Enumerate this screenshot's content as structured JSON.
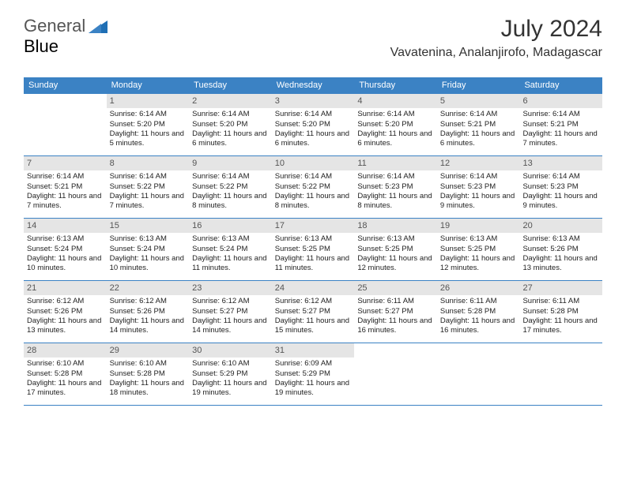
{
  "logo": {
    "word1": "General",
    "word2": "Blue"
  },
  "title": "July 2024",
  "location": "Vavatenina, Analanjirofo, Madagascar",
  "colors": {
    "accent": "#3b82c4",
    "daynum_bg": "#e5e5e5",
    "text": "#222222",
    "title_text": "#333333",
    "background": "#ffffff"
  },
  "dow": [
    "Sunday",
    "Monday",
    "Tuesday",
    "Wednesday",
    "Thursday",
    "Friday",
    "Saturday"
  ],
  "weeks": [
    [
      {
        "n": "",
        "sr": "",
        "ss": "",
        "dl": ""
      },
      {
        "n": "1",
        "sr": "6:14 AM",
        "ss": "5:20 PM",
        "dl": "11 hours and 5 minutes."
      },
      {
        "n": "2",
        "sr": "6:14 AM",
        "ss": "5:20 PM",
        "dl": "11 hours and 6 minutes."
      },
      {
        "n": "3",
        "sr": "6:14 AM",
        "ss": "5:20 PM",
        "dl": "11 hours and 6 minutes."
      },
      {
        "n": "4",
        "sr": "6:14 AM",
        "ss": "5:20 PM",
        "dl": "11 hours and 6 minutes."
      },
      {
        "n": "5",
        "sr": "6:14 AM",
        "ss": "5:21 PM",
        "dl": "11 hours and 6 minutes."
      },
      {
        "n": "6",
        "sr": "6:14 AM",
        "ss": "5:21 PM",
        "dl": "11 hours and 7 minutes."
      }
    ],
    [
      {
        "n": "7",
        "sr": "6:14 AM",
        "ss": "5:21 PM",
        "dl": "11 hours and 7 minutes."
      },
      {
        "n": "8",
        "sr": "6:14 AM",
        "ss": "5:22 PM",
        "dl": "11 hours and 7 minutes."
      },
      {
        "n": "9",
        "sr": "6:14 AM",
        "ss": "5:22 PM",
        "dl": "11 hours and 8 minutes."
      },
      {
        "n": "10",
        "sr": "6:14 AM",
        "ss": "5:22 PM",
        "dl": "11 hours and 8 minutes."
      },
      {
        "n": "11",
        "sr": "6:14 AM",
        "ss": "5:23 PM",
        "dl": "11 hours and 8 minutes."
      },
      {
        "n": "12",
        "sr": "6:14 AM",
        "ss": "5:23 PM",
        "dl": "11 hours and 9 minutes."
      },
      {
        "n": "13",
        "sr": "6:14 AM",
        "ss": "5:23 PM",
        "dl": "11 hours and 9 minutes."
      }
    ],
    [
      {
        "n": "14",
        "sr": "6:13 AM",
        "ss": "5:24 PM",
        "dl": "11 hours and 10 minutes."
      },
      {
        "n": "15",
        "sr": "6:13 AM",
        "ss": "5:24 PM",
        "dl": "11 hours and 10 minutes."
      },
      {
        "n": "16",
        "sr": "6:13 AM",
        "ss": "5:24 PM",
        "dl": "11 hours and 11 minutes."
      },
      {
        "n": "17",
        "sr": "6:13 AM",
        "ss": "5:25 PM",
        "dl": "11 hours and 11 minutes."
      },
      {
        "n": "18",
        "sr": "6:13 AM",
        "ss": "5:25 PM",
        "dl": "11 hours and 12 minutes."
      },
      {
        "n": "19",
        "sr": "6:13 AM",
        "ss": "5:25 PM",
        "dl": "11 hours and 12 minutes."
      },
      {
        "n": "20",
        "sr": "6:13 AM",
        "ss": "5:26 PM",
        "dl": "11 hours and 13 minutes."
      }
    ],
    [
      {
        "n": "21",
        "sr": "6:12 AM",
        "ss": "5:26 PM",
        "dl": "11 hours and 13 minutes."
      },
      {
        "n": "22",
        "sr": "6:12 AM",
        "ss": "5:26 PM",
        "dl": "11 hours and 14 minutes."
      },
      {
        "n": "23",
        "sr": "6:12 AM",
        "ss": "5:27 PM",
        "dl": "11 hours and 14 minutes."
      },
      {
        "n": "24",
        "sr": "6:12 AM",
        "ss": "5:27 PM",
        "dl": "11 hours and 15 minutes."
      },
      {
        "n": "25",
        "sr": "6:11 AM",
        "ss": "5:27 PM",
        "dl": "11 hours and 16 minutes."
      },
      {
        "n": "26",
        "sr": "6:11 AM",
        "ss": "5:28 PM",
        "dl": "11 hours and 16 minutes."
      },
      {
        "n": "27",
        "sr": "6:11 AM",
        "ss": "5:28 PM",
        "dl": "11 hours and 17 minutes."
      }
    ],
    [
      {
        "n": "28",
        "sr": "6:10 AM",
        "ss": "5:28 PM",
        "dl": "11 hours and 17 minutes."
      },
      {
        "n": "29",
        "sr": "6:10 AM",
        "ss": "5:28 PM",
        "dl": "11 hours and 18 minutes."
      },
      {
        "n": "30",
        "sr": "6:10 AM",
        "ss": "5:29 PM",
        "dl": "11 hours and 19 minutes."
      },
      {
        "n": "31",
        "sr": "6:09 AM",
        "ss": "5:29 PM",
        "dl": "11 hours and 19 minutes."
      },
      {
        "n": "",
        "sr": "",
        "ss": "",
        "dl": ""
      },
      {
        "n": "",
        "sr": "",
        "ss": "",
        "dl": ""
      },
      {
        "n": "",
        "sr": "",
        "ss": "",
        "dl": ""
      }
    ]
  ],
  "labels": {
    "sunrise": "Sunrise:",
    "sunset": "Sunset:",
    "daylight": "Daylight:"
  }
}
